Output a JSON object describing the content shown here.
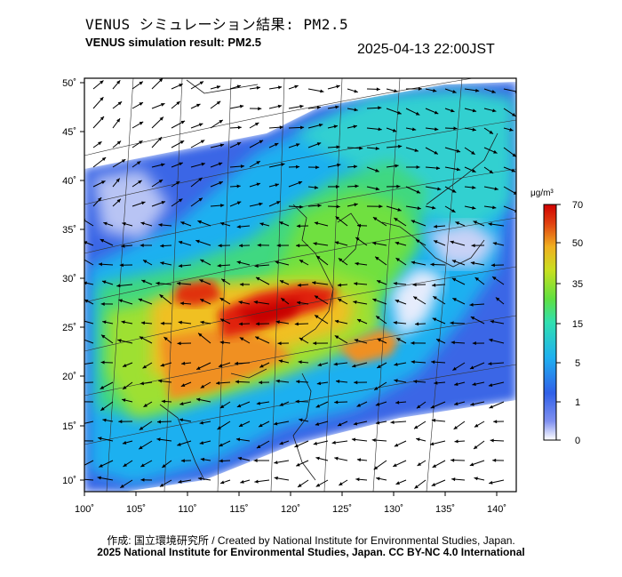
{
  "header": {
    "title_jp": "VENUS シミュレーション結果: PM2.5",
    "title_en": "VENUS simulation result: PM2.5",
    "timestamp": "2025-04-13 22:00JST"
  },
  "map": {
    "lon_ticks": [
      "100˚",
      "105˚",
      "110˚",
      "115˚",
      "120˚",
      "125˚",
      "130˚",
      "135˚",
      "140˚"
    ],
    "lat_ticks": [
      "50˚",
      "45˚",
      "40˚",
      "35˚",
      "30˚",
      "25˚",
      "20˚",
      "15˚",
      "10˚"
    ],
    "extent": {
      "lon_min": 100,
      "lon_max": 141,
      "lat_min": 9,
      "lat_max": 51
    }
  },
  "colorbar": {
    "unit": "μg/m³",
    "ticks": [
      "70",
      "50",
      "35",
      "15",
      "5",
      "1",
      "0"
    ],
    "colors": [
      "#ffffff",
      "#7b8ff0",
      "#3060e8",
      "#1fb0f0",
      "#30e0b0",
      "#60e040",
      "#c8e020",
      "#f0c020",
      "#f08020",
      "#e02010",
      "#d00000"
    ]
  },
  "footer": {
    "credit_jp": "作成: 国立環境研究所 / Created by National Institute for Environmental Studies, Japan.",
    "credit_en": "2025 National Institute for Environmental Studies, Japan. CC BY-NC 4.0 International"
  }
}
